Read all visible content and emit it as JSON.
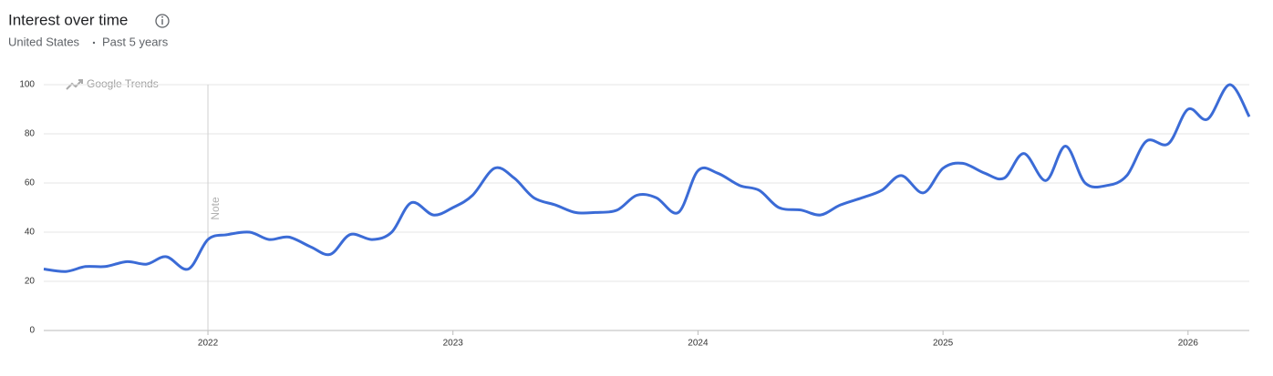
{
  "chart_data": {
    "type": "line",
    "title": "Interest over time",
    "location": "United States",
    "period": "Past 5 years",
    "watermark": "Google Trends",
    "annotation": {
      "x": 2022,
      "label": "Note"
    },
    "x": [
      2021.33,
      2021.42,
      2021.5,
      2021.58,
      2021.67,
      2021.75,
      2021.83,
      2021.92,
      2022.0,
      2022.08,
      2022.17,
      2022.25,
      2022.33,
      2022.42,
      2022.5,
      2022.58,
      2022.67,
      2022.75,
      2022.83,
      2022.92,
      2023.0,
      2023.08,
      2023.17,
      2023.25,
      2023.33,
      2023.42,
      2023.5,
      2023.58,
      2023.67,
      2023.75,
      2023.83,
      2023.92,
      2024.0,
      2024.08,
      2024.17,
      2024.25,
      2024.33,
      2024.42,
      2024.5,
      2024.58,
      2024.67,
      2024.75,
      2024.83,
      2024.92,
      2025.0,
      2025.08,
      2025.17,
      2025.25,
      2025.33,
      2025.42,
      2025.5,
      2025.58,
      2025.67,
      2025.75,
      2025.83,
      2025.92,
      2026.0,
      2026.08,
      2026.17,
      2026.25
    ],
    "series": [
      {
        "name": "Interest",
        "color": "#3b6bd6",
        "values": [
          25,
          24,
          26,
          26,
          28,
          27,
          30,
          25,
          37,
          39,
          40,
          37,
          38,
          34,
          31,
          39,
          37,
          40,
          52,
          47,
          50,
          55,
          66,
          62,
          54,
          51,
          48,
          48,
          49,
          55,
          54,
          48,
          65,
          64,
          59,
          57,
          50,
          49,
          47,
          51,
          54,
          57,
          63,
          56,
          66,
          68,
          64,
          62,
          72,
          61,
          75,
          60,
          59,
          63,
          77,
          76,
          90,
          86,
          100,
          87
        ]
      }
    ],
    "xlim": [
      2021.33,
      2026.25
    ],
    "xticks": [
      2022,
      2023,
      2024,
      2025,
      2026
    ],
    "ylim": [
      0,
      100
    ],
    "yticks": [
      0,
      20,
      40,
      60,
      80,
      100
    ],
    "grid": true
  }
}
